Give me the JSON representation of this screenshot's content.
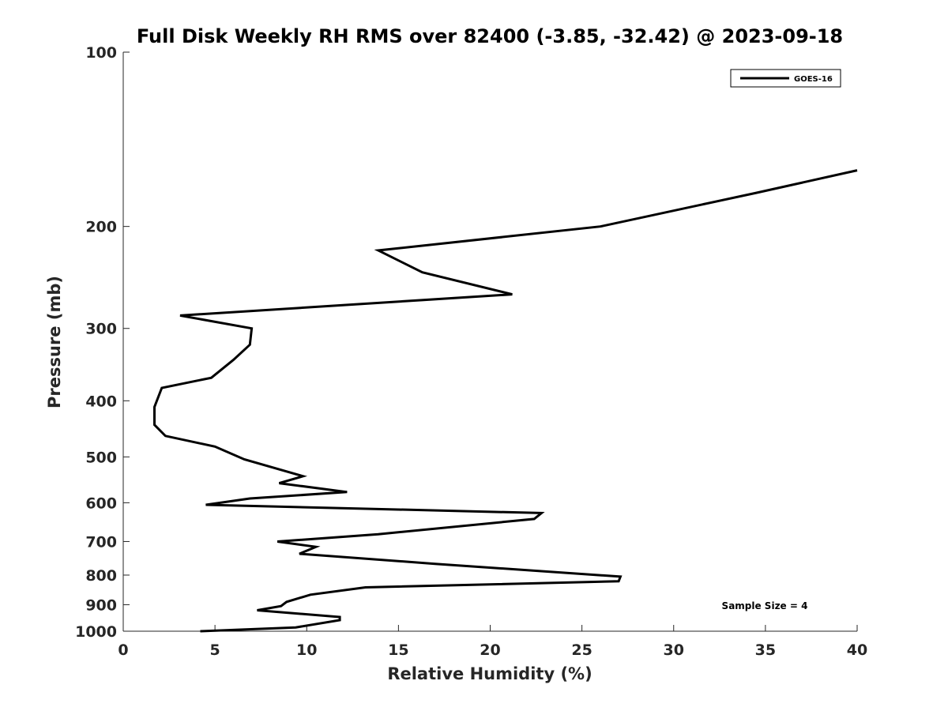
{
  "chart_data": {
    "type": "line",
    "title": "Full Disk Weekly RH RMS over 82400 (-3.85, -32.42) @ 2023-09-18",
    "xlabel": "Relative Humidity (%)",
    "ylabel": "Pressure (mb)",
    "xlim": [
      0,
      40
    ],
    "ylim": [
      1000,
      100
    ],
    "y_scale": "log",
    "y_reversed": true,
    "xticks": [
      0,
      5,
      10,
      15,
      20,
      25,
      30,
      35,
      40
    ],
    "yticks": [
      100,
      200,
      300,
      400,
      500,
      600,
      700,
      800,
      900,
      1000
    ],
    "legend_position": "top-right",
    "grid": false,
    "annotation": "Sample Size = 4",
    "series": [
      {
        "name": "GOES-16",
        "color": "#000000",
        "points": [
          [
            40.0,
            160
          ],
          [
            34.5,
            175
          ],
          [
            26.0,
            200
          ],
          [
            13.9,
            220
          ],
          [
            16.3,
            240
          ],
          [
            21.2,
            262
          ],
          [
            3.1,
            285
          ],
          [
            7.0,
            300
          ],
          [
            6.9,
            320
          ],
          [
            6.0,
            340
          ],
          [
            4.8,
            365
          ],
          [
            2.1,
            380
          ],
          [
            1.7,
            410
          ],
          [
            1.7,
            440
          ],
          [
            2.3,
            460
          ],
          [
            5.0,
            480
          ],
          [
            6.6,
            505
          ],
          [
            9.8,
            540
          ],
          [
            8.5,
            555
          ],
          [
            12.2,
            575
          ],
          [
            6.9,
            590
          ],
          [
            4.5,
            605
          ],
          [
            22.8,
            625
          ],
          [
            22.4,
            640
          ],
          [
            13.9,
            680
          ],
          [
            8.4,
            700
          ],
          [
            10.5,
            715
          ],
          [
            9.6,
            735
          ],
          [
            17.0,
            765
          ],
          [
            27.1,
            805
          ],
          [
            27.0,
            820
          ],
          [
            13.2,
            840
          ],
          [
            10.2,
            865
          ],
          [
            8.9,
            890
          ],
          [
            8.6,
            905
          ],
          [
            7.3,
            920
          ],
          [
            11.8,
            945
          ],
          [
            11.8,
            957
          ],
          [
            9.4,
            985
          ],
          [
            4.2,
            1000
          ]
        ]
      }
    ]
  }
}
